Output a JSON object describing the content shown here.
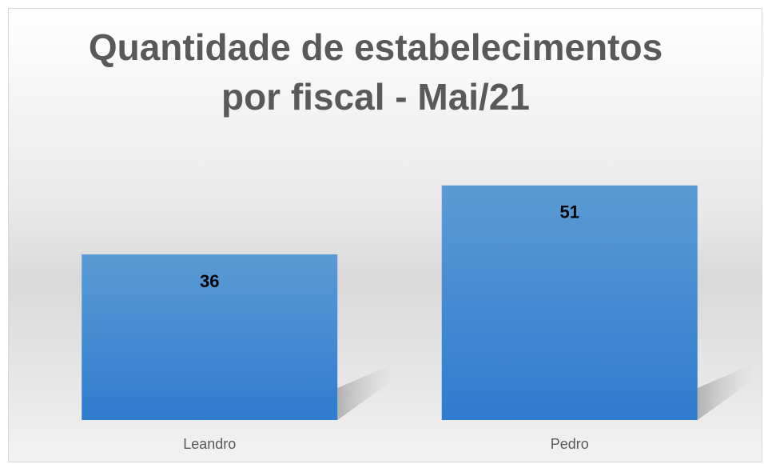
{
  "chart_data": {
    "type": "bar",
    "title": "Quantidade de estabelecimentos por fiscal - Mai/21",
    "categories": [
      "Leandro",
      "Pedro"
    ],
    "values": [
      36,
      51
    ],
    "color": "#4a8fd6"
  }
}
